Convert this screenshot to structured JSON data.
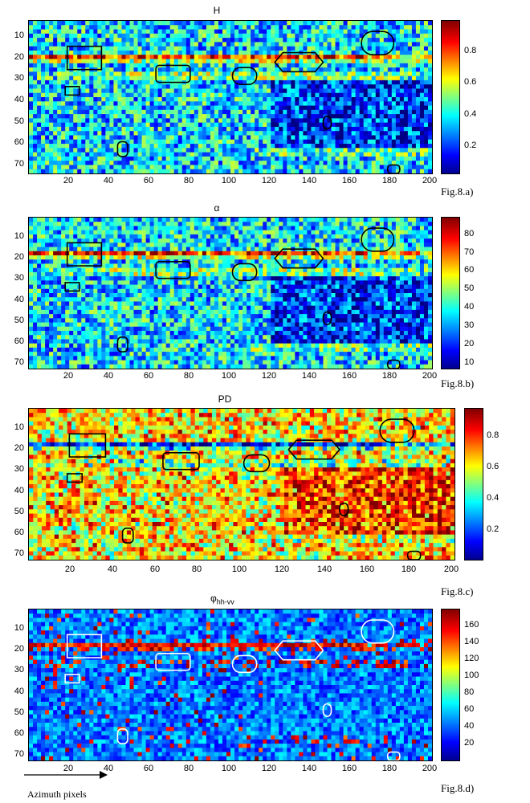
{
  "chart_data": [
    {
      "type": "heatmap",
      "title": "H",
      "figure_label": "Fig.8.a)",
      "x_ticks": [
        "20",
        "40",
        "60",
        "80",
        "100",
        "120",
        "140",
        "160",
        "180",
        "200"
      ],
      "y_ticks": [
        "10",
        "20",
        "30",
        "40",
        "50",
        "60",
        "70"
      ],
      "xlim": [
        1,
        200
      ],
      "ylim": [
        1,
        72
      ],
      "colorbar_ticks": [
        "0.2",
        "0.4",
        "0.6",
        "0.8"
      ],
      "colorbar_range": [
        0,
        0.95
      ],
      "outline_color": "#000000",
      "colormap": "jet"
    },
    {
      "type": "heatmap",
      "title": "α",
      "figure_label": "Fig.8.b)",
      "x_ticks": [
        "20",
        "40",
        "60",
        "80",
        "100",
        "120",
        "140",
        "160",
        "180",
        "200"
      ],
      "y_ticks": [
        "10",
        "20",
        "30",
        "40",
        "50",
        "60",
        "70"
      ],
      "xlim": [
        1,
        200
      ],
      "ylim": [
        1,
        72
      ],
      "colorbar_ticks": [
        "10",
        "20",
        "30",
        "40",
        "50",
        "60",
        "70",
        "80"
      ],
      "colorbar_range": [
        5,
        88
      ],
      "outline_color": "#000000",
      "colormap": "jet"
    },
    {
      "type": "heatmap",
      "title": "PD",
      "figure_label": "Fig.8.c)",
      "x_ticks": [
        "20",
        "40",
        "60",
        "80",
        "100",
        "120",
        "140",
        "160",
        "180",
        "200"
      ],
      "y_ticks": [
        "10",
        "20",
        "30",
        "40",
        "50",
        "60",
        "70"
      ],
      "xlim": [
        1,
        200
      ],
      "ylim": [
        1,
        72
      ],
      "colorbar_ticks": [
        "0.2",
        "0.4",
        "0.6",
        "0.8"
      ],
      "colorbar_range": [
        0,
        0.97
      ],
      "outline_color": "#000000",
      "colormap": "jet"
    },
    {
      "type": "heatmap",
      "title_main": "φ",
      "title_sub": "hh-vv",
      "figure_label": "Fig.8.d)",
      "xlabel": "Azimuth pixels",
      "x_ticks": [
        "20",
        "40",
        "60",
        "80",
        "100",
        "120",
        "140",
        "160",
        "180",
        "200"
      ],
      "y_ticks": [
        "10",
        "20",
        "30",
        "40",
        "50",
        "60",
        "70"
      ],
      "xlim": [
        1,
        200
      ],
      "ylim": [
        1,
        72
      ],
      "colorbar_ticks": [
        "20",
        "40",
        "60",
        "80",
        "100",
        "120",
        "140",
        "160"
      ],
      "colorbar_range": [
        0,
        180
      ],
      "outline_color": "#ffffff",
      "colormap": "jet"
    }
  ]
}
